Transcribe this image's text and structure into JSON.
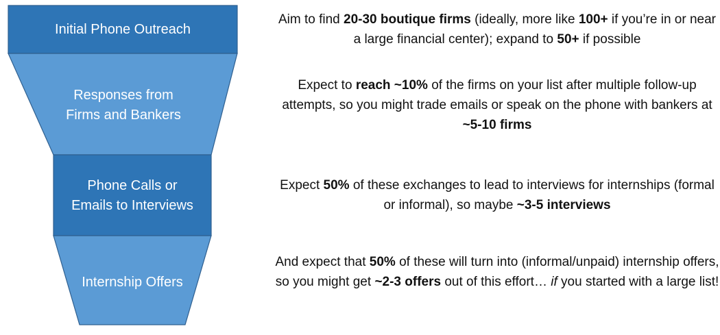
{
  "colors": {
    "stage_light": "#5b9bd5",
    "stage_dark": "#2e75b6",
    "stage_border": "#2f5f8f",
    "label_text": "#ffffff",
    "description_text": "#111111"
  },
  "funnel": {
    "stages": [
      {
        "label": "Initial Phone Outreach",
        "shade": "dark"
      },
      {
        "label": "Responses from Firms and Bankers",
        "shade": "light"
      },
      {
        "label": "Phone Calls or Emails to Interviews",
        "shade": "dark"
      },
      {
        "label": "Internship Offers",
        "shade": "light"
      }
    ]
  },
  "descriptions": [
    {
      "segments": [
        {
          "text": "Aim to find ",
          "style": "normal"
        },
        {
          "text": "20-30 boutique firms",
          "style": "bold"
        },
        {
          "text": " (ideally, more like ",
          "style": "normal"
        },
        {
          "text": "100+",
          "style": "bold"
        },
        {
          "text": " if you’re in or near a large financial center); expand to ",
          "style": "normal"
        },
        {
          "text": "50+",
          "style": "bold"
        },
        {
          "text": " if possible",
          "style": "normal"
        }
      ]
    },
    {
      "segments": [
        {
          "text": "Expect to ",
          "style": "normal"
        },
        {
          "text": "reach ~10%",
          "style": "bold"
        },
        {
          "text": " of the firms on your list after multiple follow-up attempts, so you might trade emails or speak on the phone with bankers at ",
          "style": "normal"
        },
        {
          "text": "~5-10 firms",
          "style": "bold"
        }
      ]
    },
    {
      "segments": [
        {
          "text": "Expect ",
          "style": "normal"
        },
        {
          "text": "50%",
          "style": "bold"
        },
        {
          "text": " of these exchanges to lead to interviews for internships (formal or informal), so maybe ",
          "style": "normal"
        },
        {
          "text": "~3-5 interviews",
          "style": "bold"
        }
      ]
    },
    {
      "segments": [
        {
          "text": "And expect that ",
          "style": "normal"
        },
        {
          "text": "50%",
          "style": "bold"
        },
        {
          "text": " of these will turn into (informal/unpaid) internship offers, so you might get ",
          "style": "normal"
        },
        {
          "text": "~2-3 offers",
          "style": "bold"
        },
        {
          "text": " out of this effort… ",
          "style": "normal"
        },
        {
          "text": "if",
          "style": "italic"
        },
        {
          "text": " you started with a large list!",
          "style": "normal"
        }
      ]
    }
  ]
}
